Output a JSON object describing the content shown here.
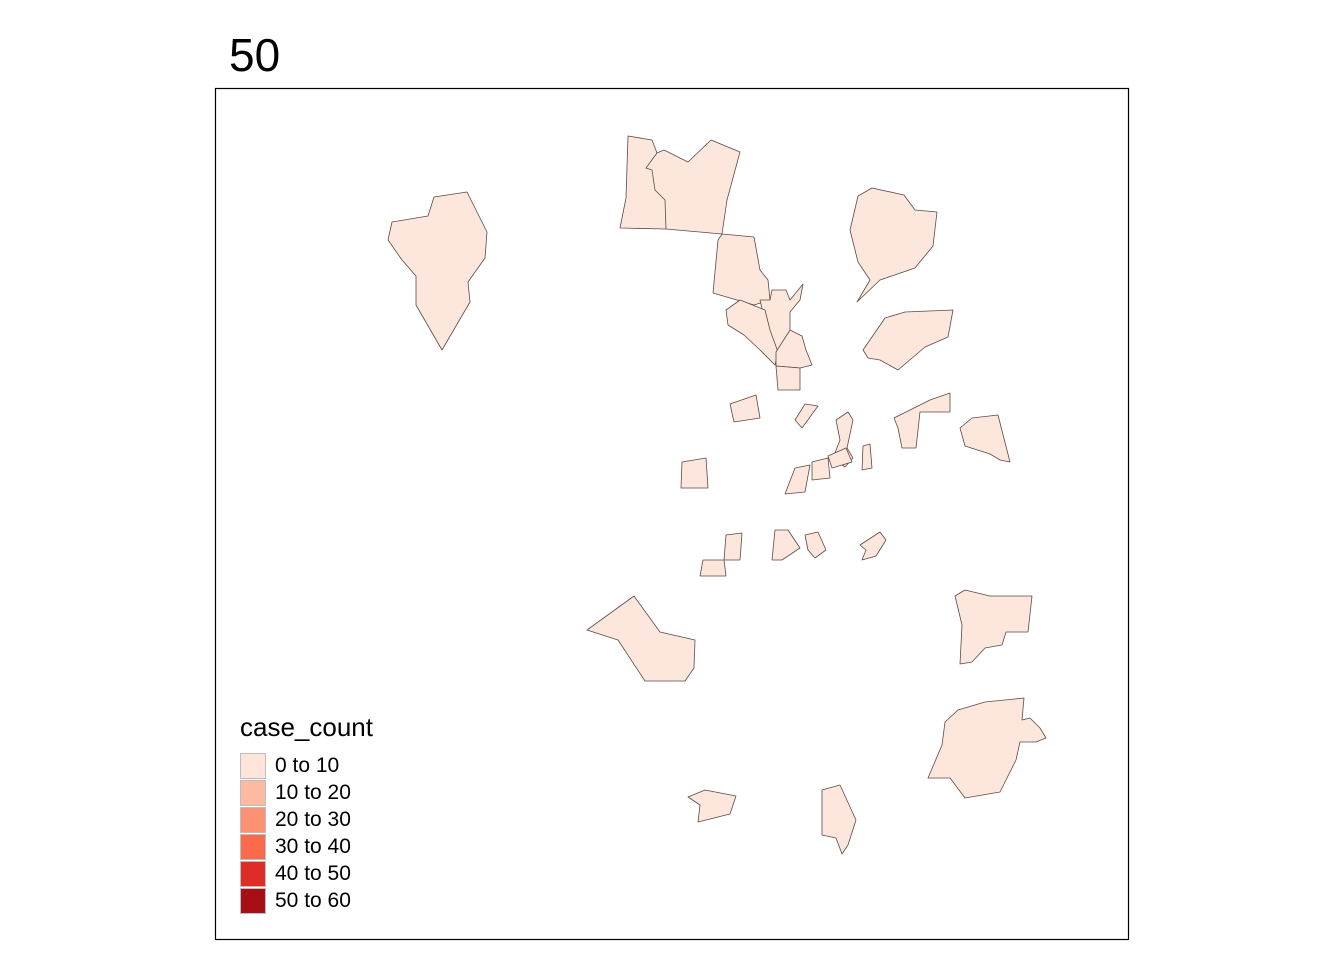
{
  "map": {
    "title": "50",
    "fill_color": "#fde7dc",
    "border_color": "#5a4a46",
    "frame_color": "#000000"
  },
  "legend": {
    "title": "case_count",
    "items": [
      {
        "label": "0 to 10",
        "color": "#fee5d9"
      },
      {
        "label": "10 to 20",
        "color": "#fcbba1"
      },
      {
        "label": "20 to 30",
        "color": "#fc9272"
      },
      {
        "label": "30 to 40",
        "color": "#fb6a4a"
      },
      {
        "label": "40 to 50",
        "color": "#de2d26"
      },
      {
        "label": "50 to 60",
        "color": "#a50f15"
      }
    ]
  }
}
